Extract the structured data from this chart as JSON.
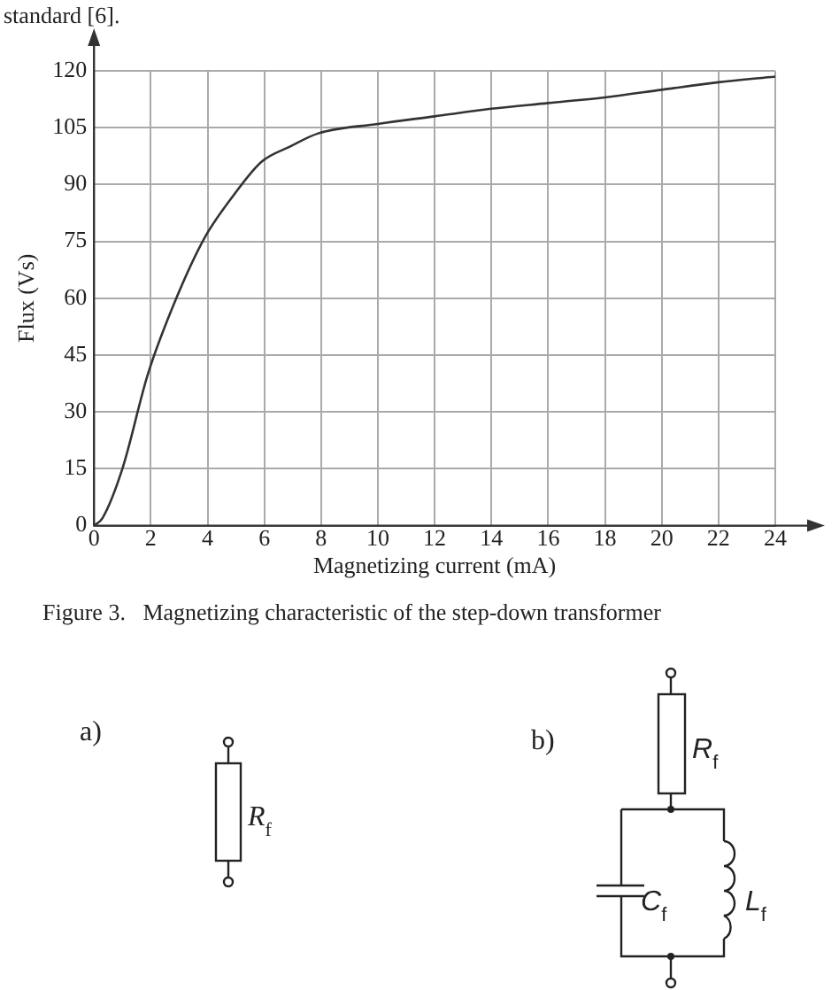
{
  "chart_data": {
    "type": "line",
    "xlabel": "Magnetizing current (mA)",
    "ylabel": "Flux (Vs)",
    "x": [
      0,
      0.3,
      1,
      1.9,
      2.9,
      3.9,
      4.9,
      5.9,
      6.9,
      7.9,
      10,
      12,
      14,
      16,
      18,
      20,
      22,
      24
    ],
    "series": [
      {
        "color": "#333333",
        "values": [
          0,
          2,
          15,
          40,
          60,
          76,
          87,
          96,
          100,
          103.5,
          106,
          108,
          110,
          111.5,
          113,
          115,
          117,
          118.5
        ]
      }
    ],
    "xlim": [
      0,
      24
    ],
    "xticks": [
      0,
      2,
      4,
      6,
      8,
      10,
      12,
      14,
      16,
      18,
      20,
      22,
      24
    ],
    "ylim": [
      0,
      120
    ],
    "yticks": [
      0,
      15,
      30,
      45,
      60,
      75,
      90,
      105,
      120
    ],
    "grid": true,
    "marker": "none",
    "line_style": "solid",
    "annotations": [
      "standard [6].",
      "Figure 3.   Magnetizing characteristic of the step-down transformer",
      "a)",
      "R$_{f}$",
      "b)",
      "R$_{f}$",
      "C$_{f}$",
      "L$_{f}$"
    ]
  }
}
